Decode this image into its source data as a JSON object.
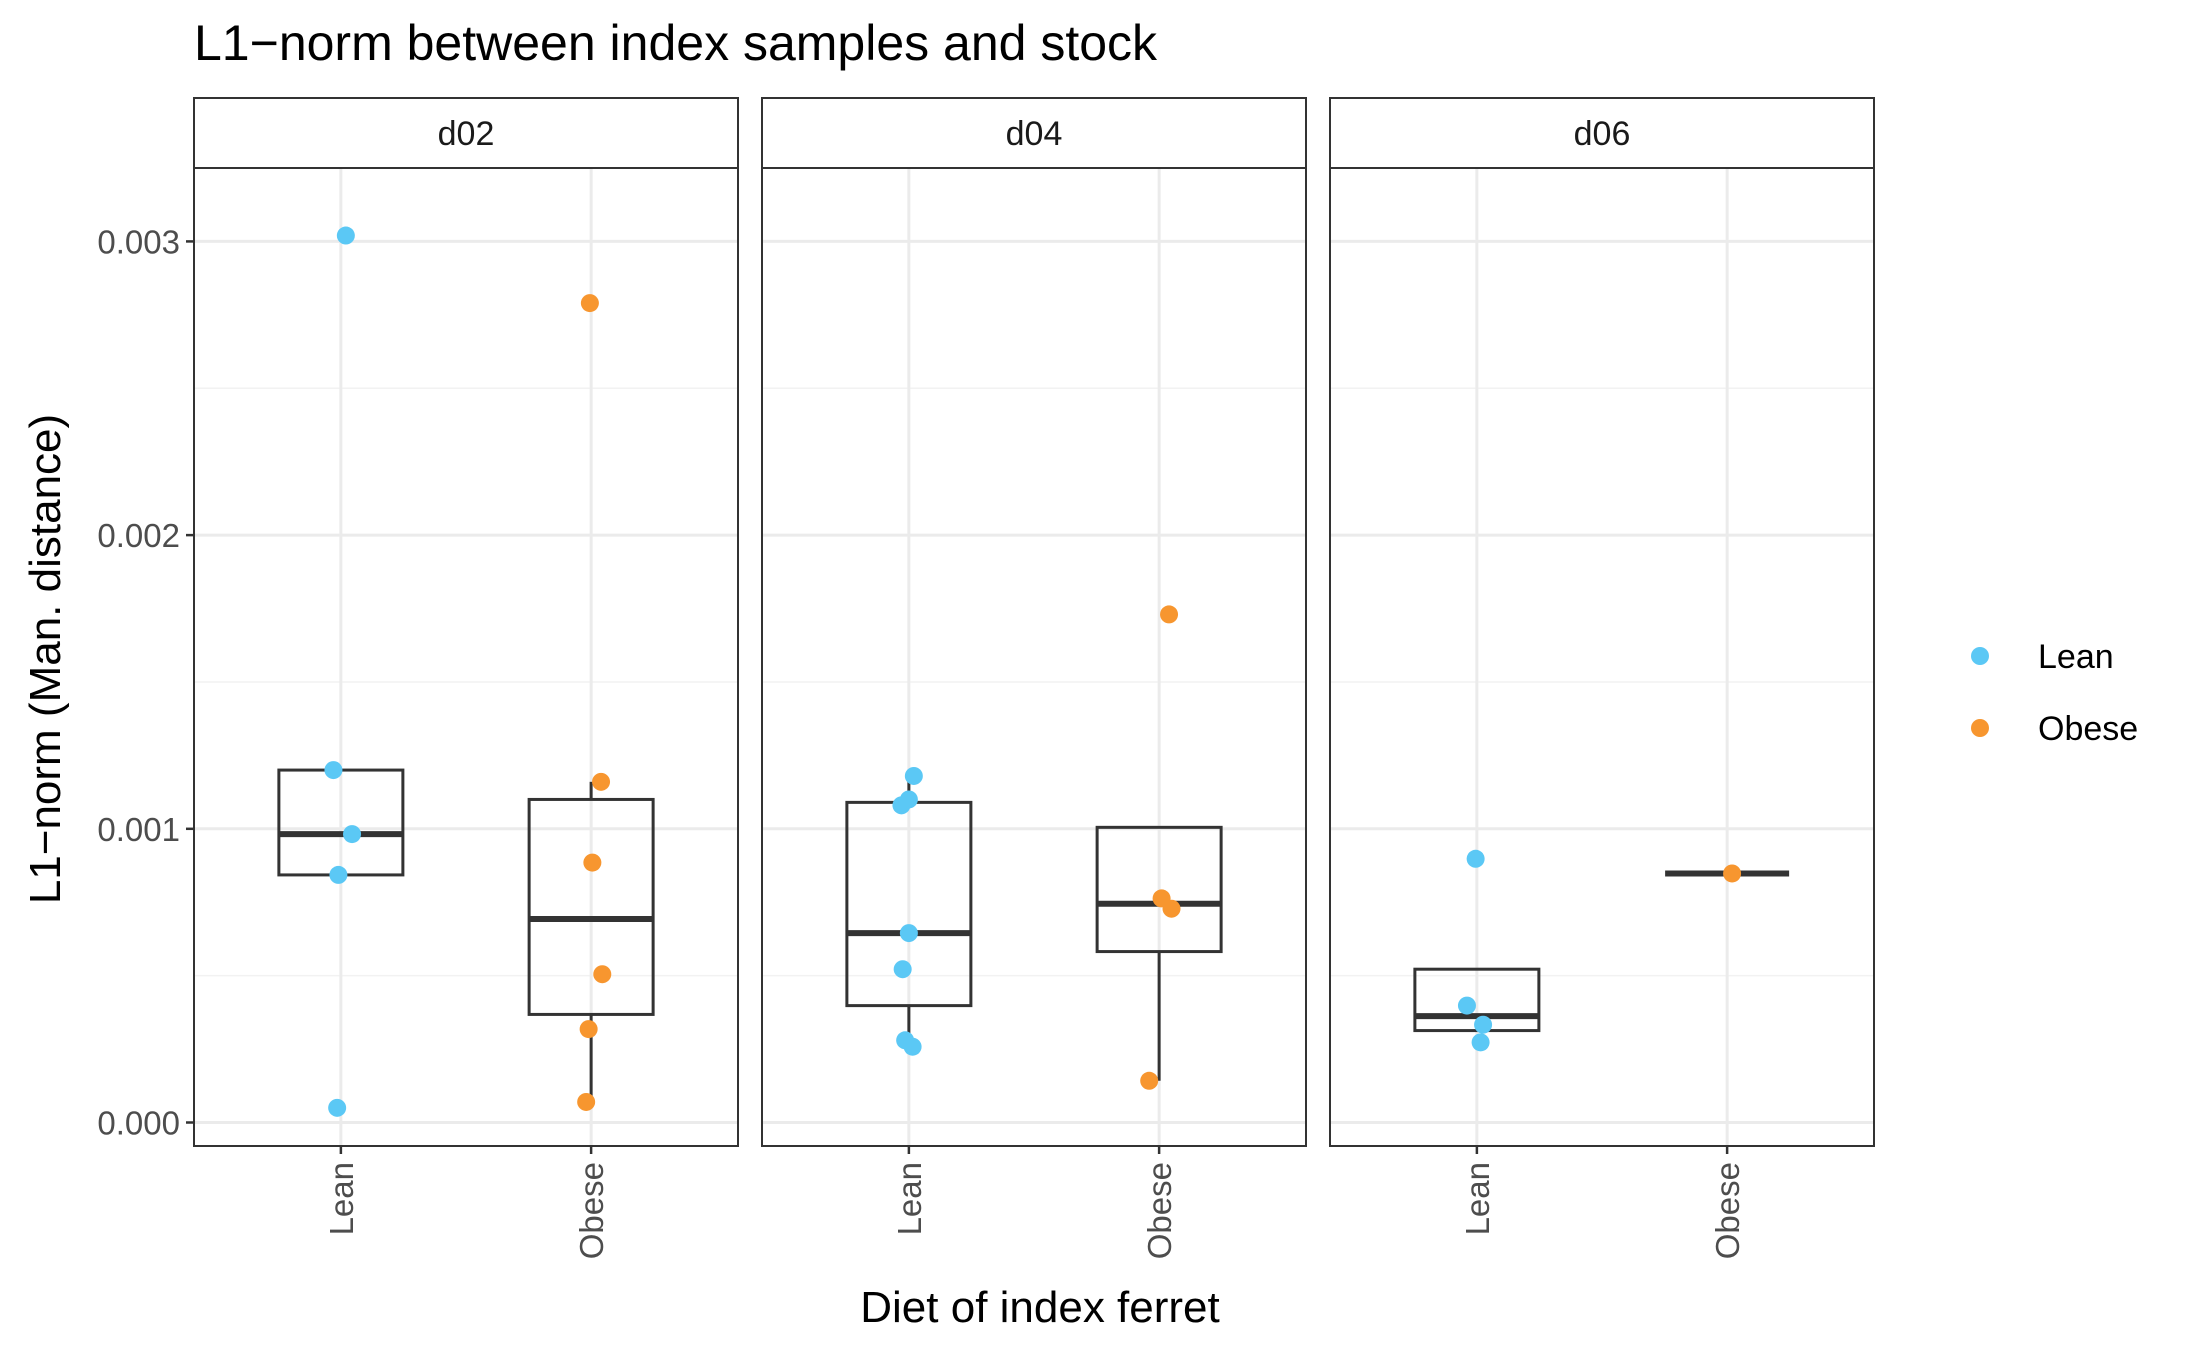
{
  "chart_data": {
    "type": "box",
    "title": "L1−norm between index samples and stock",
    "xlabel": "Diet of index ferret",
    "ylabel": "L1−norm (Man. distance)",
    "ylim": [
      -8e-05,
      0.00325
    ],
    "yticks": [
      0.0,
      0.001,
      0.002,
      0.003
    ],
    "ytick_labels": [
      "0.000",
      "0.001",
      "0.002",
      "0.003"
    ],
    "categories": [
      "Lean",
      "Obese"
    ],
    "grid": true,
    "legend": {
      "position": "right",
      "entries": [
        {
          "label": "Lean",
          "color": "#5BC8F5"
        },
        {
          "label": "Obese",
          "color": "#F7962F"
        }
      ]
    },
    "colors": {
      "Lean": "#5BC8F5",
      "Obese": "#F7962F"
    },
    "facets": [
      {
        "label": "d02",
        "groups": [
          {
            "category": "Lean",
            "box": {
              "q1": 0.000843,
              "median": 0.000982,
              "q3": 0.0012,
              "whisker_low": 0.000843,
              "whisker_high": 0.0012
            },
            "points": [
              {
                "x_jitter": 0.04,
                "y": 0.00302
              },
              {
                "x_jitter": -0.06,
                "y": 0.0012
              },
              {
                "x_jitter": 0.09,
                "y": 0.000982
              },
              {
                "x_jitter": -0.02,
                "y": 0.000843
              },
              {
                "x_jitter": -0.03,
                "y": 5e-05
              }
            ]
          },
          {
            "category": "Obese",
            "box": {
              "q1": 0.000368,
              "median": 0.000693,
              "q3": 0.0011,
              "whisker_low": 7e-05,
              "whisker_high": 0.00116
            },
            "points": [
              {
                "x_jitter": -0.01,
                "y": 0.00279
              },
              {
                "x_jitter": 0.08,
                "y": 0.00116
              },
              {
                "x_jitter": 0.01,
                "y": 0.000885
              },
              {
                "x_jitter": 0.09,
                "y": 0.000505
              },
              {
                "x_jitter": -0.02,
                "y": 0.000318
              },
              {
                "x_jitter": -0.04,
                "y": 7e-05
              }
            ]
          }
        ]
      },
      {
        "label": "d04",
        "groups": [
          {
            "category": "Lean",
            "box": {
              "q1": 0.000398,
              "median": 0.000645,
              "q3": 0.00109,
              "whisker_low": 0.000258,
              "whisker_high": 0.00118
            },
            "points": [
              {
                "x_jitter": 0.04,
                "y": 0.00118
              },
              {
                "x_jitter": 0.0,
                "y": 0.0011
              },
              {
                "x_jitter": -0.06,
                "y": 0.00108
              },
              {
                "x_jitter": 0.0,
                "y": 0.000645
              },
              {
                "x_jitter": -0.05,
                "y": 0.000522
              },
              {
                "x_jitter": -0.03,
                "y": 0.00028
              },
              {
                "x_jitter": 0.03,
                "y": 0.000258
              }
            ]
          },
          {
            "category": "Obese",
            "box": {
              "q1": 0.000582,
              "median": 0.000745,
              "q3": 0.001005,
              "whisker_low": 0.000142,
              "whisker_high": 0.001005
            },
            "points": [
              {
                "x_jitter": 0.08,
                "y": 0.00173
              },
              {
                "x_jitter": 0.02,
                "y": 0.000763
              },
              {
                "x_jitter": 0.1,
                "y": 0.000728
              },
              {
                "x_jitter": -0.08,
                "y": 0.000142
              }
            ]
          }
        ]
      },
      {
        "label": "d06",
        "groups": [
          {
            "category": "Lean",
            "box": {
              "q1": 0.000313,
              "median": 0.000362,
              "q3": 0.000522,
              "whisker_low": 0.000313,
              "whisker_high": 0.000522
            },
            "points": [
              {
                "x_jitter": -0.01,
                "y": 0.000898
              },
              {
                "x_jitter": -0.08,
                "y": 0.000398
              },
              {
                "x_jitter": 0.05,
                "y": 0.000333
              },
              {
                "x_jitter": 0.03,
                "y": 0.000273
              }
            ]
          },
          {
            "category": "Obese",
            "box": {
              "q1": 0.000848,
              "median": 0.000848,
              "q3": 0.000848,
              "whisker_low": 0.000848,
              "whisker_high": 0.000848
            },
            "points": [
              {
                "x_jitter": 0.04,
                "y": 0.000848
              }
            ]
          }
        ]
      }
    ]
  }
}
